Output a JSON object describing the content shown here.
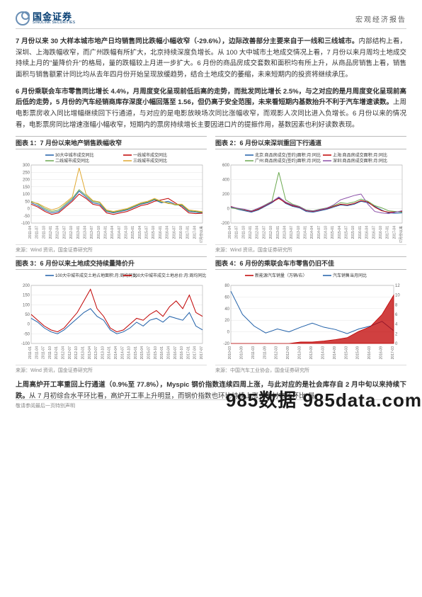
{
  "header": {
    "logo_cn": "国金证券",
    "logo_en": "SINOLINK SECURITIES",
    "report_type": "宏观经济报告"
  },
  "paragraphs": [
    {
      "bold": "7 月份以来 30 大样本城市地产日均销售同比跌幅小幅收窄（-29.6%），边际改善部分主要来自于一线和三线城市。",
      "rest": "内部结构上看，深圳、上海跌幅收窄，而广州跌幅有所扩大，北京持续深度负增长。从 100 大中城市土地成交情况上看，7 月份以来月周均土地成交持续上月的\"量降价升\"的格局，量的跌幅较上月进一步扩大。6 月份的商品房成交套数和面积均有所上升，从商品房销售上看，销售面积与销售额累计同比均从去年四月份开始呈现放缓趋势，结合土地成交的萎缩，未来短期内的投资将继续承压。"
    },
    {
      "bold": "6 月份乘联会车市零售同比增长 4.4%，月周度变化呈现前低后高的走势，而批发同比增长 2.5%，与之对应的是月周度变化呈现前高后低的走势，5 月份的汽车经销商库存深度小幅回落至 1.56，但仍高于安全范围，未来看短期内基数抬升不利于汽车增速读数。",
      "rest": "上周电影票房收入同比增幅继续回下行通道，与对应的是电影放映场次同比涨幅收窄，而观影人次同比进入负增长。6 月份以来的情况看，电影票房同比增速涨幅小幅收窄，短期内的票房持续增长主要因进口片的提振作用，基数因素也利好读数表现。"
    },
    {
      "bold": "上周高炉开工率重回上行通道（0.9%至 77.8%），Myspic 钢价指数连续四周上涨，与此对应的是社会库存自 2 月中旬以来持续下跌。",
      "rest": "从 7 月初综合水平环比看，高炉开工率上升明显，而钢价指数也环比持续上涨，钢材市场环比\"量"
    }
  ],
  "charts": [
    {
      "title": "图表 1：7 月份以来地产销售跌幅收窄",
      "source": "来源：Wind 资讯，国金证券研究所",
      "legend": [
        {
          "label": "30大中城市成交同比",
          "color": "#1f5fa8"
        },
        {
          "label": "一线城市成交同比",
          "color": "#c00000"
        },
        {
          "label": "二线城市成交同比",
          "color": "#6aa84f"
        },
        {
          "label": "三线城市成交同比",
          "color": "#e0a830"
        }
      ],
      "y_ticks": [
        -100,
        -50,
        0,
        50,
        100,
        150,
        200,
        250,
        300
      ],
      "x_labels": [
        "2011-04",
        "2011-07",
        "2011-10",
        "2012-01",
        "2012-04",
        "2012-07",
        "2012-10",
        "2013-01",
        "2013-04",
        "2013-07",
        "2013-10",
        "2014-01",
        "2014-04",
        "2014-07",
        "2014-10",
        "2015-01",
        "2015-04",
        "2015-07",
        "2015-10",
        "2016-01",
        "2016-04",
        "2016-07",
        "2016-10",
        "2017-01",
        "2017-04",
        "2017/7月份以来"
      ],
      "series": [
        {
          "color": "#1f5fa8",
          "values": [
            40,
            20,
            -10,
            -30,
            -20,
            20,
            60,
            120,
            80,
            40,
            30,
            -20,
            -30,
            -20,
            -10,
            10,
            30,
            40,
            60,
            40,
            50,
            30,
            20,
            -20,
            -25,
            -29.6
          ]
        },
        {
          "color": "#c00000",
          "values": [
            30,
            10,
            -20,
            -40,
            -30,
            10,
            50,
            100,
            70,
            30,
            20,
            -30,
            -40,
            -30,
            -20,
            0,
            20,
            30,
            50,
            60,
            70,
            40,
            10,
            -30,
            -35,
            -32
          ]
        },
        {
          "color": "#6aa84f",
          "values": [
            50,
            30,
            0,
            -20,
            -10,
            30,
            70,
            130,
            90,
            50,
            40,
            -15,
            -25,
            -15,
            -5,
            15,
            35,
            45,
            65,
            45,
            40,
            25,
            25,
            -15,
            -20,
            -26
          ]
        },
        {
          "color": "#e0a830",
          "values": [
            45,
            35,
            10,
            -10,
            5,
            40,
            80,
            280,
            100,
            55,
            45,
            -10,
            -20,
            -10,
            0,
            20,
            40,
            50,
            70,
            50,
            35,
            30,
            30,
            -10,
            -15,
            -22
          ]
        }
      ]
    },
    {
      "title": "图表 2：6 月份以来深圳重回下行通道",
      "source": "来源：Wind 资讯，国金证券研究所",
      "legend": [
        {
          "label": "北京:商品房成交(签约)面积:月:同比",
          "color": "#1f5fa8"
        },
        {
          "label": "上海:商品房成交面积:月:同比",
          "color": "#c00000"
        },
        {
          "label": "广州:商品房成交(签约)面积:月:同比",
          "color": "#6aa84f"
        },
        {
          "label": "深圳:商品房成交面积:月:同比",
          "color": "#8a4fa8"
        }
      ],
      "y_ticks": [
        -200,
        0,
        200,
        400,
        600
      ],
      "x_labels": [
        "2011-04",
        "2011-07",
        "2011-10",
        "2012-01",
        "2012-04",
        "2012-07",
        "2012-10",
        "2013-01",
        "2013-04",
        "2013-07",
        "2013-10",
        "2014-01",
        "2014-04",
        "2014-07",
        "2014-10",
        "2015-01",
        "2015-04",
        "2015-07",
        "2015-10",
        "2016-01",
        "2016-04",
        "2016-07",
        "2016-10",
        "2017-01",
        "2017-04",
        "2017/7月份以来"
      ],
      "series": [
        {
          "color": "#1f5fa8",
          "values": [
            20,
            -10,
            -30,
            -50,
            -20,
            30,
            80,
            150,
            70,
            30,
            10,
            -40,
            -50,
            -30,
            -10,
            20,
            50,
            40,
            60,
            100,
            80,
            30,
            -20,
            -60,
            -65,
            -60
          ]
        },
        {
          "color": "#c00000",
          "values": [
            30,
            0,
            -20,
            -40,
            -10,
            40,
            90,
            140,
            80,
            40,
            20,
            -30,
            -40,
            -20,
            0,
            30,
            60,
            50,
            70,
            110,
            90,
            20,
            -30,
            -50,
            -45,
            -40
          ]
        },
        {
          "color": "#6aa84f",
          "values": [
            10,
            -5,
            -15,
            -30,
            0,
            50,
            100,
            500,
            120,
            60,
            30,
            -20,
            -30,
            -10,
            10,
            40,
            80,
            70,
            90,
            130,
            100,
            40,
            10,
            -30,
            -40,
            -50
          ]
        },
        {
          "color": "#8a4fa8",
          "values": [
            25,
            5,
            -10,
            -35,
            5,
            45,
            95,
            160,
            90,
            50,
            25,
            -25,
            -35,
            -15,
            5,
            50,
            120,
            150,
            180,
            200,
            60,
            -40,
            -60,
            -70,
            -50,
            -30
          ]
        }
      ]
    },
    {
      "title": "图表 3：6 月份以来土地成交持续量降价升",
      "source": "来源：Wind 资讯，国金证券研究所",
      "legend": [
        {
          "label": "100大中城市成交土地占地面积:月:周均同比",
          "color": "#1f5fa8"
        },
        {
          "label": "100大中城市成交土地总价:月:周均同比",
          "color": "#c00000"
        }
      ],
      "y_ticks": [
        -100,
        -50,
        0,
        50,
        100,
        150,
        200
      ],
      "x_labels": [
        "2011-01",
        "2011-04",
        "2011-07",
        "2011-10",
        "2012-01",
        "2012-04",
        "2012-07",
        "2012-10",
        "2013-01",
        "2013-04",
        "2013-07",
        "2013-10",
        "2014-01",
        "2014-04",
        "2014-07",
        "2014-10",
        "2015-01",
        "2015-04",
        "2015-07",
        "2015-10",
        "2016-01",
        "2016-04",
        "2016-07",
        "2016-10",
        "2017-01",
        "2017-04",
        "2017-07"
      ],
      "series": [
        {
          "color": "#1f5fa8",
          "values": [
            30,
            10,
            -20,
            -40,
            -50,
            -30,
            0,
            30,
            60,
            80,
            40,
            20,
            -30,
            -50,
            -40,
            -20,
            10,
            -10,
            20,
            30,
            10,
            40,
            30,
            20,
            60,
            -10,
            -30
          ]
        },
        {
          "color": "#c00000",
          "values": [
            50,
            20,
            -10,
            -30,
            -40,
            -20,
            20,
            60,
            120,
            180,
            80,
            40,
            -20,
            -40,
            -30,
            0,
            30,
            20,
            50,
            70,
            40,
            90,
            120,
            80,
            150,
            60,
            40
          ]
        }
      ]
    },
    {
      "title": "图表 4：6 月份的乘联会车市零售仍旧不佳",
      "source": "来源：中国汽车工业协会，国金证券研究所",
      "legend": [
        {
          "label": "新能源汽车销量（万辆/右）",
          "color": "#c00000",
          "type": "area"
        },
        {
          "label": "汽车销售当月同比",
          "color": "#1f5fa8",
          "type": "line"
        }
      ],
      "y_ticks": [
        -20,
        0,
        20,
        40,
        60,
        80
      ],
      "y2_ticks": [
        0,
        2,
        4,
        6,
        8,
        10,
        12
      ],
      "x_labels": [
        "2010-03",
        "2010-09",
        "2011-03",
        "2011-09",
        "2012-03",
        "2012-09",
        "2013-03",
        "2013-09",
        "2014-03",
        "2014-09",
        "2015-03",
        "2015-09",
        "2016-03",
        "2016-09",
        "2017-03"
      ],
      "series": [
        {
          "color": "#1f5fa8",
          "type": "line",
          "values": [
            70,
            30,
            10,
            -2,
            5,
            0,
            8,
            15,
            8,
            4,
            -3,
            5,
            10,
            18,
            2
          ]
        },
        {
          "color": "#c00000",
          "type": "area",
          "values": [
            0,
            0,
            0,
            0,
            0,
            0,
            0.3,
            0.3,
            0.5,
            0.8,
            1.2,
            2.5,
            3.5,
            6,
            10
          ]
        }
      ]
    }
  ],
  "footer": "敬请参阅最后一页特别声明",
  "watermark": "985数据 985data.com"
}
